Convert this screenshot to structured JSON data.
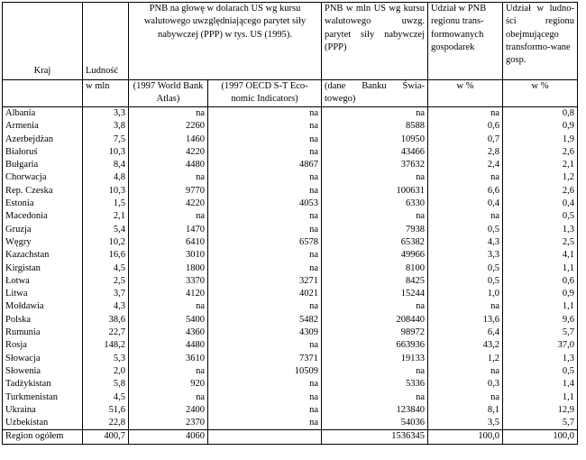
{
  "headers": {
    "kraj": "Kraj",
    "ludnosc": "Ludność",
    "pnb_per_capita": "PNB na głowę w dolarach US wg kursu walutowego uwzględniającego parytet siły nabywczej (PPP) w tys. US (1995).",
    "pnb_total": "PNB w mln US wg kursu walutowego uwzg. parytet siły nabywczej (PPP)",
    "udzial_pnb": "Udział w PNB regionu trans-formowanych gospodarek",
    "udzial_ludnosci": "Udział w ludno-ści regionu obejmującego transformo-wane gosp."
  },
  "subheaders": {
    "ludnosc_unit": "w mln",
    "source_wb": "(1997 World Bank Atlas)",
    "source_oecd": "(1997 OECD S-T Eco-nomic Indicators)",
    "source_wb2": "(dane Banku Świa-towego)",
    "pct1": "w %",
    "pct2": "w %"
  },
  "rows": [
    {
      "kraj": "Albania",
      "ludnosc": "3,3",
      "wb": "na",
      "oecd": "na",
      "pnb": "na",
      "udzial_pnb": "na",
      "udzial_ludn": "0,8"
    },
    {
      "kraj": "Armenia",
      "ludnosc": "3,8",
      "wb": "2260",
      "oecd": "na",
      "pnb": "8588",
      "udzial_pnb": "0,6",
      "udzial_ludn": "0,9"
    },
    {
      "kraj": "Azerbejdżan",
      "ludnosc": "7,5",
      "wb": "1460",
      "oecd": "na",
      "pnb": "10950",
      "udzial_pnb": "0,7",
      "udzial_ludn": "1,9"
    },
    {
      "kraj": "Białoruś",
      "ludnosc": "10,3",
      "wb": "4220",
      "oecd": "na",
      "pnb": "43466",
      "udzial_pnb": "2,8",
      "udzial_ludn": "2,6"
    },
    {
      "kraj": "Bułgaria",
      "ludnosc": "8,4",
      "wb": "4480",
      "oecd": "4867",
      "pnb": "37632",
      "udzial_pnb": "2,4",
      "udzial_ludn": "2,1"
    },
    {
      "kraj": "Chorwacja",
      "ludnosc": "4,8",
      "wb": "na",
      "oecd": "na",
      "pnb": "na",
      "udzial_pnb": "na",
      "udzial_ludn": "1,2"
    },
    {
      "kraj": "Rep. Czeska",
      "ludnosc": "10,3",
      "wb": "9770",
      "oecd": "na",
      "pnb": "100631",
      "udzial_pnb": "6,6",
      "udzial_ludn": "2,6"
    },
    {
      "kraj": "Estonia",
      "ludnosc": "1,5",
      "wb": "4220",
      "oecd": "4053",
      "pnb": "6330",
      "udzial_pnb": "0,4",
      "udzial_ludn": "0,4"
    },
    {
      "kraj": "Macedonia",
      "ludnosc": "2,1",
      "wb": "na",
      "oecd": "na",
      "pnb": "na",
      "udzial_pnb": "na",
      "udzial_ludn": "0,5"
    },
    {
      "kraj": "Gruzja",
      "ludnosc": "5,4",
      "wb": "1470",
      "oecd": "na",
      "pnb": "7938",
      "udzial_pnb": "0,5",
      "udzial_ludn": "1,3"
    },
    {
      "kraj": "Węgry",
      "ludnosc": "10,2",
      "wb": "6410",
      "oecd": "6578",
      "pnb": "65382",
      "udzial_pnb": "4,3",
      "udzial_ludn": "2,5"
    },
    {
      "kraj": "Kazachstan",
      "ludnosc": "16,6",
      "wb": "3010",
      "oecd": "na",
      "pnb": "49966",
      "udzial_pnb": "3,3",
      "udzial_ludn": "4,1"
    },
    {
      "kraj": "Kirgistan",
      "ludnosc": "4,5",
      "wb": "1800",
      "oecd": "na",
      "pnb": "8100",
      "udzial_pnb": "0,5",
      "udzial_ludn": "1,1"
    },
    {
      "kraj": "Łotwa",
      "ludnosc": "2,5",
      "wb": "3370",
      "oecd": "3271",
      "pnb": "8425",
      "udzial_pnb": "0,5",
      "udzial_ludn": "0,6"
    },
    {
      "kraj": "Litwa",
      "ludnosc": "3,7",
      "wb": "4120",
      "oecd": "4021",
      "pnb": "15244",
      "udzial_pnb": "1,0",
      "udzial_ludn": "0,9"
    },
    {
      "kraj": "Mołdawia",
      "ludnosc": "4,3",
      "wb": "na",
      "oecd": "na",
      "pnb": "na",
      "udzial_pnb": "na",
      "udzial_ludn": "1,1"
    },
    {
      "kraj": "Polska",
      "ludnosc": "38,6",
      "wb": "5400",
      "oecd": "5482",
      "pnb": "208440",
      "udzial_pnb": "13,6",
      "udzial_ludn": "9,6"
    },
    {
      "kraj": "Rumunia",
      "ludnosc": "22,7",
      "wb": "4360",
      "oecd": "4309",
      "pnb": "98972",
      "udzial_pnb": "6,4",
      "udzial_ludn": "5,7"
    },
    {
      "kraj": "Rosja",
      "ludnosc": "148,2",
      "wb": "4480",
      "oecd": "na",
      "pnb": "663936",
      "udzial_pnb": "43,2",
      "udzial_ludn": "37,0"
    },
    {
      "kraj": "Słowacja",
      "ludnosc": "5,3",
      "wb": "3610",
      "oecd": "7371",
      "pnb": "19133",
      "udzial_pnb": "1,2",
      "udzial_ludn": "1,3"
    },
    {
      "kraj": "Słowenia",
      "ludnosc": "2,0",
      "wb": "na",
      "oecd": "10509",
      "pnb": "na",
      "udzial_pnb": "na",
      "udzial_ludn": "0,5"
    },
    {
      "kraj": "Tadżykistan",
      "ludnosc": "5,8",
      "wb": "920",
      "oecd": "na",
      "pnb": "5336",
      "udzial_pnb": "0,3",
      "udzial_ludn": "1,4"
    },
    {
      "kraj": "Turkmenistan",
      "ludnosc": "4,5",
      "wb": "na",
      "oecd": "na",
      "pnb": "na",
      "udzial_pnb": "na",
      "udzial_ludn": "1,1"
    },
    {
      "kraj": "Ukraina",
      "ludnosc": "51,6",
      "wb": "2400",
      "oecd": "na",
      "pnb": "123840",
      "udzial_pnb": "8,1",
      "udzial_ludn": "12,9"
    },
    {
      "kraj": "Uzbekistan",
      "ludnosc": "22,8",
      "wb": "2370",
      "oecd": "na",
      "pnb": "54036",
      "udzial_pnb": "3,5",
      "udzial_ludn": "5,7"
    }
  ],
  "total": {
    "kraj": "Region ogółem",
    "ludnosc": "400,7",
    "wb": "4060",
    "oecd": "",
    "pnb": "1536345",
    "udzial_pnb": "100,0",
    "udzial_ludn": "100,0"
  }
}
